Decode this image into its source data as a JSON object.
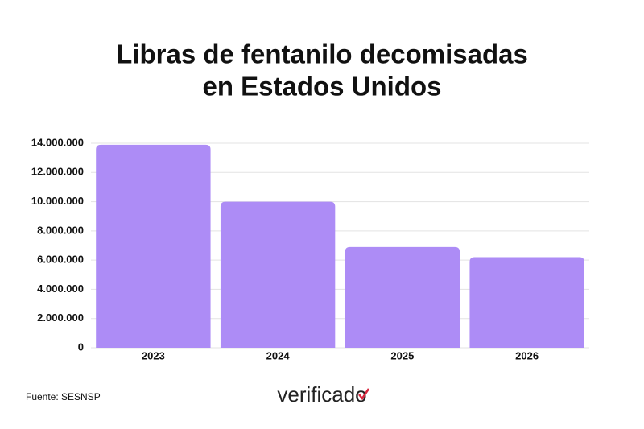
{
  "chart_data": {
    "type": "bar",
    "title": [
      "Libras de fentanilo decomisadas",
      "en Estados Unidos"
    ],
    "categories": [
      "2023",
      "2024",
      "2025",
      "2026"
    ],
    "values": [
      13900000,
      10000000,
      6900000,
      6200000
    ],
    "color": "#ad8cf6",
    "ylim": [
      0,
      14000000
    ],
    "yticks": [
      0,
      {
        "value": 2000000,
        "label": "2.000.000"
      },
      {
        "value": 4000000,
        "label": "4.000.000"
      },
      {
        "value": 6000000,
        "label": "6.000.000"
      },
      {
        "value": 8000000,
        "label": "8.000.000"
      },
      {
        "value": 10000000,
        "label": "10.000.000"
      },
      {
        "value": 12000000,
        "label": "12.000.000"
      },
      {
        "value": 14000000,
        "label": "14.000.000"
      }
    ],
    "grid": true,
    "source": "Fuente: SESNSP",
    "logo": "verificado"
  }
}
